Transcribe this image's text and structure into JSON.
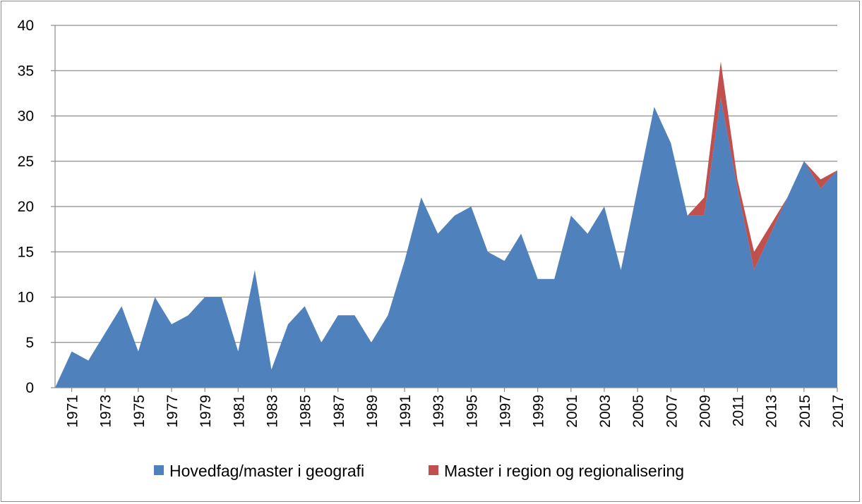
{
  "chart_data": {
    "type": "area",
    "stacked": true,
    "x": [
      1970,
      1971,
      1972,
      1973,
      1974,
      1975,
      1976,
      1977,
      1978,
      1979,
      1980,
      1981,
      1982,
      1983,
      1984,
      1985,
      1986,
      1987,
      1988,
      1989,
      1990,
      1991,
      1992,
      1993,
      1994,
      1995,
      1996,
      1997,
      1998,
      1999,
      2000,
      2001,
      2002,
      2003,
      2004,
      2005,
      2006,
      2007,
      2008,
      2009,
      2010,
      2011,
      2012,
      2013,
      2014,
      2015,
      2016,
      2017
    ],
    "x_tick_labels": [
      "1971",
      "1973",
      "1975",
      "1977",
      "1979",
      "1981",
      "1983",
      "1985",
      "1987",
      "1989",
      "1991",
      "1993",
      "1995",
      "1997",
      "1999",
      "2001",
      "2003",
      "2005",
      "2007",
      "2009",
      "2011",
      "2013",
      "2015",
      "2017"
    ],
    "y_ticks": [
      "0",
      "5",
      "10",
      "15",
      "20",
      "25",
      "30",
      "35",
      "40"
    ],
    "ylim": [
      0,
      40
    ],
    "grid": true,
    "legend_position": "bottom",
    "series": [
      {
        "name": "Hovedfag/master i geografi",
        "color": "#4F81BD",
        "values": [
          0,
          4,
          3,
          6,
          9,
          4,
          10,
          7,
          8,
          10,
          10,
          4,
          13,
          2,
          7,
          9,
          5,
          8,
          8,
          5,
          8,
          14,
          21,
          17,
          19,
          20,
          15,
          14,
          17,
          12,
          12,
          19,
          17,
          20,
          13,
          22,
          31,
          27,
          19,
          19,
          32,
          22,
          13,
          17,
          21,
          25,
          22,
          24
        ]
      },
      {
        "name": "Master i region og regionalisering",
        "color": "#C0504D",
        "values": [
          0,
          0,
          0,
          0,
          0,
          0,
          0,
          0,
          0,
          0,
          0,
          0,
          0,
          0,
          0,
          0,
          0,
          0,
          0,
          0,
          0,
          0,
          0,
          0,
          0,
          0,
          0,
          0,
          0,
          0,
          0,
          0,
          0,
          0,
          0,
          0,
          0,
          0,
          0,
          2,
          4,
          1,
          2,
          1,
          0,
          0,
          1,
          0
        ]
      }
    ]
  }
}
